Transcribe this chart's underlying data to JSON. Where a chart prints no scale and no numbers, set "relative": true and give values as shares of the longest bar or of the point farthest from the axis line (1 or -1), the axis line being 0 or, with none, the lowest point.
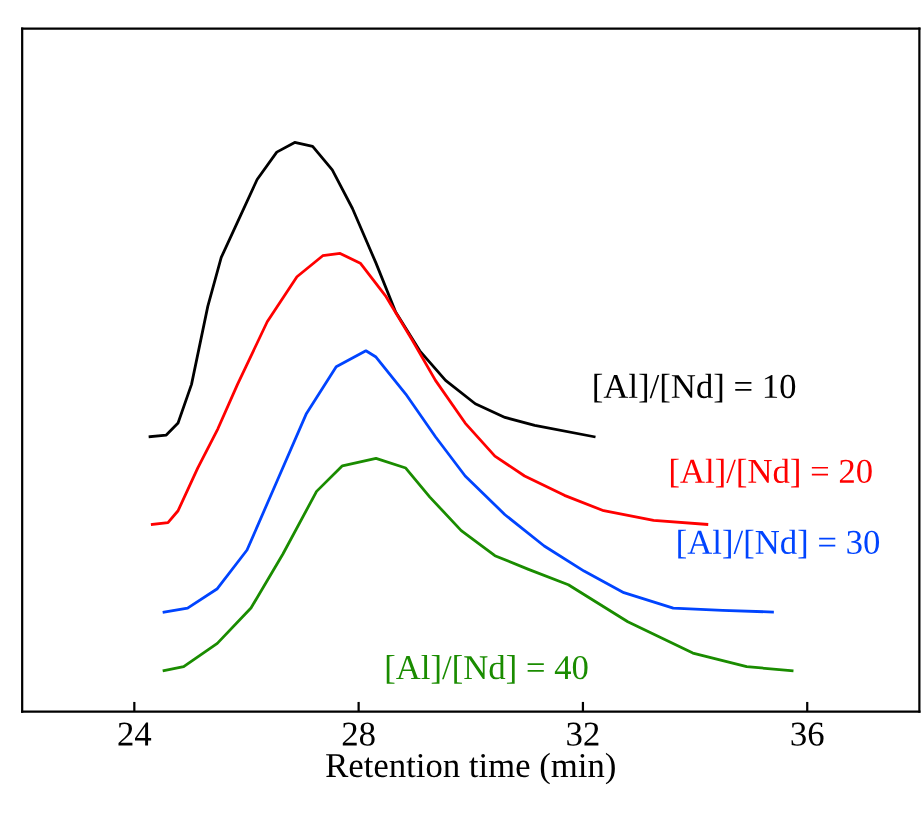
{
  "chart_data": {
    "type": "line",
    "xlabel": "Retention time (min)",
    "relative": true,
    "xlim": [
      22,
      38
    ],
    "xticks": [
      24,
      28,
      32,
      36
    ],
    "grid": false,
    "legend": false,
    "marker": "none",
    "line_style": "solid",
    "series": [
      {
        "name": "[Al]/[Nd] = 10",
        "color": "#000000",
        "x": [
          24.28,
          24.57,
          24.78,
          25.02,
          25.31,
          25.55,
          25.84,
          26.19,
          26.54,
          26.86,
          27.18,
          27.53,
          27.89,
          28.31,
          28.66,
          29.09,
          29.55,
          30.08,
          30.61,
          31.14,
          32.2
        ],
        "values": [
          0.483,
          0.486,
          0.507,
          0.575,
          0.712,
          0.798,
          0.86,
          0.935,
          0.983,
          1.0,
          0.993,
          0.952,
          0.884,
          0.788,
          0.702,
          0.634,
          0.582,
          0.541,
          0.517,
          0.503,
          0.483
        ]
      },
      {
        "name": "[Al]/[Nd] = 20",
        "color": "#ff0000",
        "x": [
          24.32,
          24.6,
          24.78,
          25.13,
          25.49,
          25.84,
          26.37,
          26.9,
          27.36,
          27.67,
          28.03,
          28.49,
          28.95,
          29.37,
          29.9,
          30.43,
          30.96,
          31.67,
          32.37,
          33.26,
          34.21
        ],
        "values": [
          0.329,
          0.332,
          0.353,
          0.428,
          0.497,
          0.575,
          0.685,
          0.764,
          0.801,
          0.805,
          0.788,
          0.729,
          0.654,
          0.582,
          0.507,
          0.449,
          0.414,
          0.38,
          0.353,
          0.336,
          0.329
        ]
      },
      {
        "name": "[Al]/[Nd] = 30",
        "color": "#0044ff",
        "x": [
          24.53,
          24.95,
          25.48,
          26.01,
          26.54,
          27.07,
          27.6,
          28.13,
          28.31,
          28.84,
          29.37,
          29.9,
          30.61,
          31.31,
          32.02,
          32.73,
          33.61,
          34.49,
          35.38
        ],
        "values": [
          0.175,
          0.182,
          0.216,
          0.284,
          0.404,
          0.524,
          0.606,
          0.634,
          0.623,
          0.558,
          0.483,
          0.414,
          0.346,
          0.291,
          0.247,
          0.209,
          0.182,
          0.178,
          0.175
        ]
      },
      {
        "name": "[Al]/[Nd] = 40",
        "color": "#1a8c00",
        "x": [
          24.53,
          24.88,
          25.48,
          26.08,
          26.65,
          27.25,
          27.71,
          28.31,
          28.84,
          29.27,
          29.83,
          30.43,
          31.03,
          31.74,
          32.8,
          33.96,
          34.92,
          35.73
        ],
        "values": [
          0.072,
          0.079,
          0.12,
          0.182,
          0.277,
          0.387,
          0.432,
          0.445,
          0.428,
          0.377,
          0.318,
          0.274,
          0.25,
          0.223,
          0.158,
          0.103,
          0.079,
          0.072
        ]
      }
    ]
  }
}
